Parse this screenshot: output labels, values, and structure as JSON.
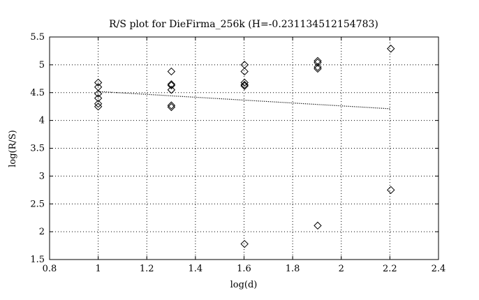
{
  "chart_data": {
    "type": "scatter",
    "title": "R/S plot for DieFirma_256k (H=-0.231134512154783)",
    "xlabel": "log(d)",
    "ylabel": "log(R/S)",
    "xlim": [
      0.8,
      2.4
    ],
    "ylim": [
      1.5,
      5.5
    ],
    "xticks": [
      "0.8",
      "1",
      "1.2",
      "1.4",
      "1.6",
      "1.8",
      "2",
      "2.2",
      "2.4"
    ],
    "yticks": [
      "1.5",
      "2",
      "2.5",
      "3",
      "3.5",
      "4",
      "4.5",
      "5",
      "5.5"
    ],
    "grid": true,
    "marker": "diamond",
    "points": [
      {
        "x": 1.0,
        "y": 4.68
      },
      {
        "x": 1.0,
        "y": 4.6
      },
      {
        "x": 1.0,
        "y": 4.48
      },
      {
        "x": 1.0,
        "y": 4.4
      },
      {
        "x": 1.0,
        "y": 4.3
      },
      {
        "x": 1.0,
        "y": 4.25
      },
      {
        "x": 1.301,
        "y": 4.88
      },
      {
        "x": 1.301,
        "y": 4.65
      },
      {
        "x": 1.301,
        "y": 4.63
      },
      {
        "x": 1.301,
        "y": 4.55
      },
      {
        "x": 1.301,
        "y": 4.27
      },
      {
        "x": 1.301,
        "y": 4.24
      },
      {
        "x": 1.602,
        "y": 5.0
      },
      {
        "x": 1.602,
        "y": 4.88
      },
      {
        "x": 1.602,
        "y": 4.68
      },
      {
        "x": 1.602,
        "y": 4.64
      },
      {
        "x": 1.602,
        "y": 4.62
      },
      {
        "x": 1.602,
        "y": 1.78
      },
      {
        "x": 1.903,
        "y": 5.07
      },
      {
        "x": 1.903,
        "y": 5.04
      },
      {
        "x": 1.903,
        "y": 4.96
      },
      {
        "x": 1.903,
        "y": 4.93
      },
      {
        "x": 1.903,
        "y": 2.11
      },
      {
        "x": 2.204,
        "y": 5.29
      },
      {
        "x": 2.204,
        "y": 2.75
      }
    ],
    "fit_line": {
      "style": "dotted",
      "x": [
        1.0,
        2.2
      ],
      "y": [
        4.52,
        4.21
      ]
    }
  }
}
